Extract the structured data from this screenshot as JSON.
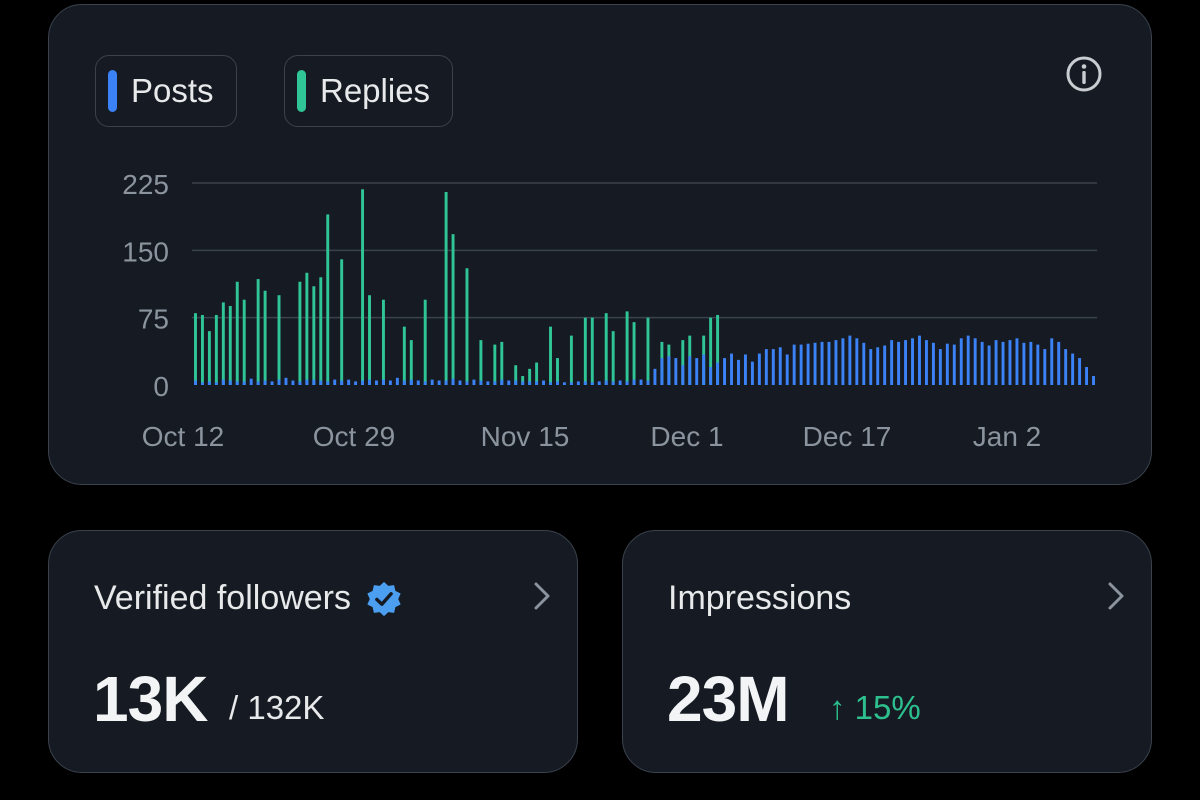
{
  "legend": {
    "posts": {
      "label": "Posts",
      "color": "#3b82f6"
    },
    "replies": {
      "label": "Replies",
      "color": "#2fc596"
    }
  },
  "info_icon": "info-icon",
  "chart_data": {
    "type": "bar",
    "title": "",
    "xlabel": "",
    "ylabel": "",
    "ylim": [
      0,
      225
    ],
    "y_ticks": [
      "225",
      "150",
      "75",
      "0"
    ],
    "x_tick_labels": [
      "Oct 12",
      "Oct 29",
      "Nov 15",
      "Dec 1",
      "Dec 17",
      "Jan 2"
    ],
    "grid": true,
    "series": [
      {
        "name": "Posts",
        "color": "#3b82f6",
        "values": [
          5,
          3,
          4,
          3,
          6,
          5,
          4,
          4,
          7,
          4,
          5,
          4,
          6,
          8,
          5,
          4,
          6,
          6,
          5,
          4,
          6,
          5,
          6,
          4,
          5,
          6,
          5,
          6,
          5,
          8,
          5,
          6,
          5,
          4,
          6,
          5,
          5,
          7,
          5,
          4,
          6,
          5,
          4,
          4,
          6,
          5,
          5,
          4,
          4,
          4,
          5,
          3,
          4,
          3,
          3,
          4,
          4,
          3,
          4,
          5,
          4,
          5,
          4,
          6,
          6,
          5,
          18,
          30,
          32,
          30,
          22,
          32,
          30,
          34,
          20,
          25,
          30,
          35,
          28,
          34,
          26,
          35,
          40,
          40,
          42,
          34,
          45,
          45,
          46,
          47,
          48,
          48,
          50,
          52,
          55,
          52,
          47,
          40,
          42,
          44,
          50,
          48,
          50,
          52,
          55,
          50,
          47,
          40,
          46,
          45,
          52,
          55,
          52,
          48,
          44,
          50,
          48,
          50,
          52,
          47,
          48,
          45,
          40,
          52,
          48,
          40,
          35,
          30,
          20,
          10
        ]
      },
      {
        "name": "Replies",
        "color": "#2fc596",
        "values": [
          80,
          78,
          60,
          78,
          92,
          88,
          115,
          95,
          0,
          118,
          105,
          0,
          100,
          0,
          0,
          115,
          125,
          110,
          120,
          190,
          0,
          140,
          0,
          0,
          218,
          100,
          0,
          95,
          0,
          0,
          65,
          50,
          0,
          95,
          0,
          0,
          215,
          168,
          0,
          130,
          0,
          50,
          0,
          45,
          48,
          0,
          22,
          10,
          18,
          25,
          0,
          65,
          30,
          0,
          55,
          0,
          75,
          75,
          0,
          80,
          60,
          0,
          82,
          70,
          0,
          75,
          0,
          48,
          45,
          0,
          50,
          55,
          0,
          55,
          75,
          78,
          0,
          0,
          0,
          0,
          0,
          0,
          0,
          0,
          0,
          0,
          0,
          0,
          0,
          0,
          0,
          0,
          0,
          0,
          0,
          0,
          0,
          0,
          0,
          0,
          0,
          0,
          0,
          0,
          0,
          0,
          0,
          0,
          0,
          0,
          0,
          0,
          0,
          0,
          0,
          0,
          0,
          0,
          0,
          0,
          0,
          0,
          0,
          0,
          0,
          0,
          0,
          0,
          0,
          0
        ]
      }
    ]
  },
  "followers": {
    "title": "Verified followers",
    "badge_icon": "verified-badge-icon",
    "value": "13K",
    "total": "/ 132K"
  },
  "impressions": {
    "title": "Impressions",
    "value": "23M",
    "delta": "↑ 15%",
    "delta_color": "#2dc08e"
  }
}
